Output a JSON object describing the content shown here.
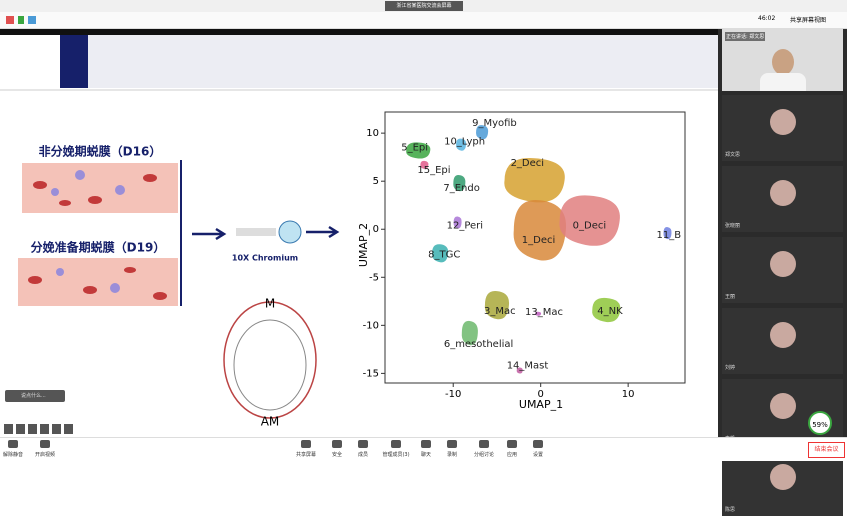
{
  "window_title": "浙江省某医院交流会屏幕",
  "status": {
    "timer": "46:02",
    "view": "共享屏幕视图"
  },
  "slide": {
    "left_labels": [
      "非分娩期蜕膜（D16）",
      "分娩准备期蜕膜（D19）"
    ],
    "chromium": "10X Chromium",
    "diagram_top": "M",
    "diagram_bottom": "AM",
    "comment_placeholder": "说点什么..."
  },
  "chart_data": {
    "type": "scatter",
    "xlabel": "UMAP_1",
    "ylabel": "UMAP_2",
    "xlim": [
      -17.8,
      16.5
    ],
    "ylim": [
      -16,
      12.2
    ],
    "xticks": [
      -10,
      0,
      10
    ],
    "yticks": [
      10,
      5,
      0,
      -5,
      -10,
      -15
    ],
    "series": [
      {
        "name": "9_Myofib",
        "color": "#4a9ad6",
        "x": [
          -6.7
        ],
        "values": [
          10.1
        ]
      },
      {
        "name": "10_Lyph",
        "color": "#58b4e0",
        "x": [
          -9.1
        ],
        "values": [
          8.8
        ]
      },
      {
        "name": "5_Epi",
        "color": "#3aa640",
        "x": [
          -14
        ],
        "values": [
          8.2
        ]
      },
      {
        "name": "2_Deci",
        "color": "#d6a12f",
        "x": [
          -0.7
        ],
        "values": [
          5.1
        ]
      },
      {
        "name": "15_Epi",
        "color": "#e05a8a",
        "x": [
          -13.3
        ],
        "values": [
          6.7
        ]
      },
      {
        "name": "7_Endo",
        "color": "#2e9a6b",
        "x": [
          -9.3
        ],
        "values": [
          4.8
        ]
      },
      {
        "name": "12_Peri",
        "color": "#a974d6",
        "x": [
          -9.5
        ],
        "values": [
          0.7
        ]
      },
      {
        "name": "1_Deci",
        "color": "#d8883a",
        "x": [
          -0.1
        ],
        "values": [
          -0.1
        ]
      },
      {
        "name": "0_Deci",
        "color": "#e07f7f",
        "x": [
          5.6
        ],
        "values": [
          0.9
        ]
      },
      {
        "name": "11_B",
        "color": "#6f7fe0",
        "x": [
          14.5
        ],
        "values": [
          -0.4
        ]
      },
      {
        "name": "8_TGC",
        "color": "#3ab0b0",
        "x": [
          -11.5
        ],
        "values": [
          -2.5
        ]
      },
      {
        "name": "3_Mac",
        "color": "#a9a83a",
        "x": [
          -5
        ],
        "values": [
          -7.9
        ]
      },
      {
        "name": "13_Mac",
        "color": "#c05ac0",
        "x": [
          -0.3
        ],
        "values": [
          -8.8
        ]
      },
      {
        "name": "4_NK",
        "color": "#8ec63a",
        "x": [
          7.5
        ],
        "values": [
          -8.4
        ]
      },
      {
        "name": "6_mesothelial",
        "color": "#6cb86c",
        "x": [
          -8.1
        ],
        "values": [
          -10.8
        ]
      },
      {
        "name": "14_Mast",
        "color": "#c05aa0",
        "x": [
          -2.4
        ],
        "values": [
          -14.7
        ]
      }
    ]
  },
  "speaking": "正在讲话: 郑文思",
  "participants": [
    "郑文思",
    "张晓丽",
    "王丽",
    "刘婷",
    "李凯",
    "陈思"
  ],
  "cpu": "59%",
  "toolbar": [
    "解除静音",
    "开启视频",
    "共享屏幕",
    "安全",
    "成员",
    "管理成员(3)",
    "聊天",
    "录制",
    "分组讨论",
    "应用",
    "设置"
  ],
  "end_button": "结束会议"
}
